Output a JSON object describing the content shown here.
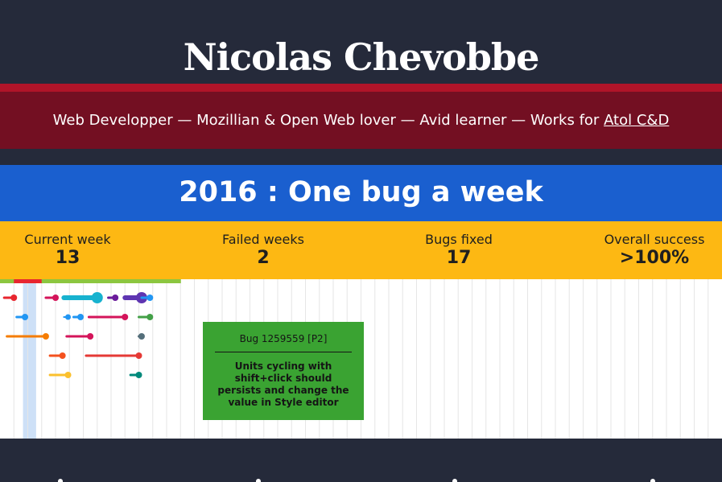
{
  "header": {
    "title": "Nicolas Chevobbe",
    "tagline_text": "Web Developper — Mozillian & Open Web lover — Avid learner — Works for ",
    "tagline_link": "Atol C&D"
  },
  "challenge": {
    "title": "2016 : One bug a week"
  },
  "stats": [
    {
      "label": "Current week",
      "value": "13"
    },
    {
      "label": "Failed weeks",
      "value": "2"
    },
    {
      "label": "Bugs fixed",
      "value": "17"
    },
    {
      "label": "Overall success",
      "value": ">100%"
    }
  ],
  "tooltip": {
    "title": "Bug 1259559 [P2]",
    "description": "Units cycling with shift+click should persists and change the value in Style editor"
  },
  "colors": {
    "header_bg": "#252a3a",
    "tagline_bg": "#730f22",
    "red_line": "#b01429",
    "title_band": "#1a5fcf",
    "stats_band": "#fdb813",
    "tooltip_bg": "#3aa332",
    "current_week_highlight": "#cde0f7"
  },
  "timeline": {
    "total_weeks": 52,
    "current_week": 13,
    "week_status": [
      "ok",
      "fail",
      "fail",
      "ok",
      "ok",
      "ok",
      "ok",
      "ok",
      "ok",
      "ok",
      "ok",
      "ok",
      "ok"
    ],
    "status_colors": {
      "ok": "#8cc63f",
      "fail": "#e8262f"
    },
    "bugs": [
      {
        "row": 0,
        "start": 0.3,
        "end": 1.0,
        "color": "#e8262f",
        "thick": 3
      },
      {
        "row": 0,
        "start": 3.3,
        "end": 4.0,
        "color": "#d4145a",
        "thick": 3
      },
      {
        "row": 0,
        "start": 4.6,
        "end": 7.0,
        "color": "#17b2cf",
        "thick": 6
      },
      {
        "row": 0,
        "start": 7.8,
        "end": 8.3,
        "color": "#6a1b9a",
        "thick": 3
      },
      {
        "row": 0,
        "start": 9.0,
        "end": 10.2,
        "color": "#5e35b1",
        "thick": 6
      },
      {
        "row": 0,
        "start": 10.2,
        "end": 10.8,
        "color": "#2196f3",
        "thick": 3
      },
      {
        "row": 1,
        "start": 1.2,
        "end": 1.8,
        "color": "#2196f3",
        "thick": 3
      },
      {
        "row": 1,
        "start": 4.6,
        "end": 4.9,
        "color": "#2196f3",
        "thick": 2
      },
      {
        "row": 1,
        "start": 5.3,
        "end": 5.8,
        "color": "#2196f3",
        "thick": 3
      },
      {
        "row": 1,
        "start": 6.4,
        "end": 9.0,
        "color": "#d4145a",
        "thick": 3
      },
      {
        "row": 1,
        "start": 10.0,
        "end": 10.8,
        "color": "#43a047",
        "thick": 3
      },
      {
        "row": 2,
        "start": 0.5,
        "end": 3.3,
        "color": "#f57c00",
        "thick": 3
      },
      {
        "row": 2,
        "start": 4.8,
        "end": 6.5,
        "color": "#d4145a",
        "thick": 3
      },
      {
        "row": 2,
        "start": 10.0,
        "end": 10.2,
        "color": "#546e7a",
        "thick": 3
      },
      {
        "row": 3,
        "start": 3.6,
        "end": 4.5,
        "color": "#f4511e",
        "thick": 3
      },
      {
        "row": 3,
        "start": 6.2,
        "end": 10.0,
        "color": "#e53935",
        "thick": 3
      },
      {
        "row": 4,
        "start": 3.6,
        "end": 4.9,
        "color": "#fbc02d",
        "thick": 3
      },
      {
        "row": 4,
        "start": 9.4,
        "end": 10.0,
        "color": "#00897b",
        "thick": 3
      }
    ]
  }
}
